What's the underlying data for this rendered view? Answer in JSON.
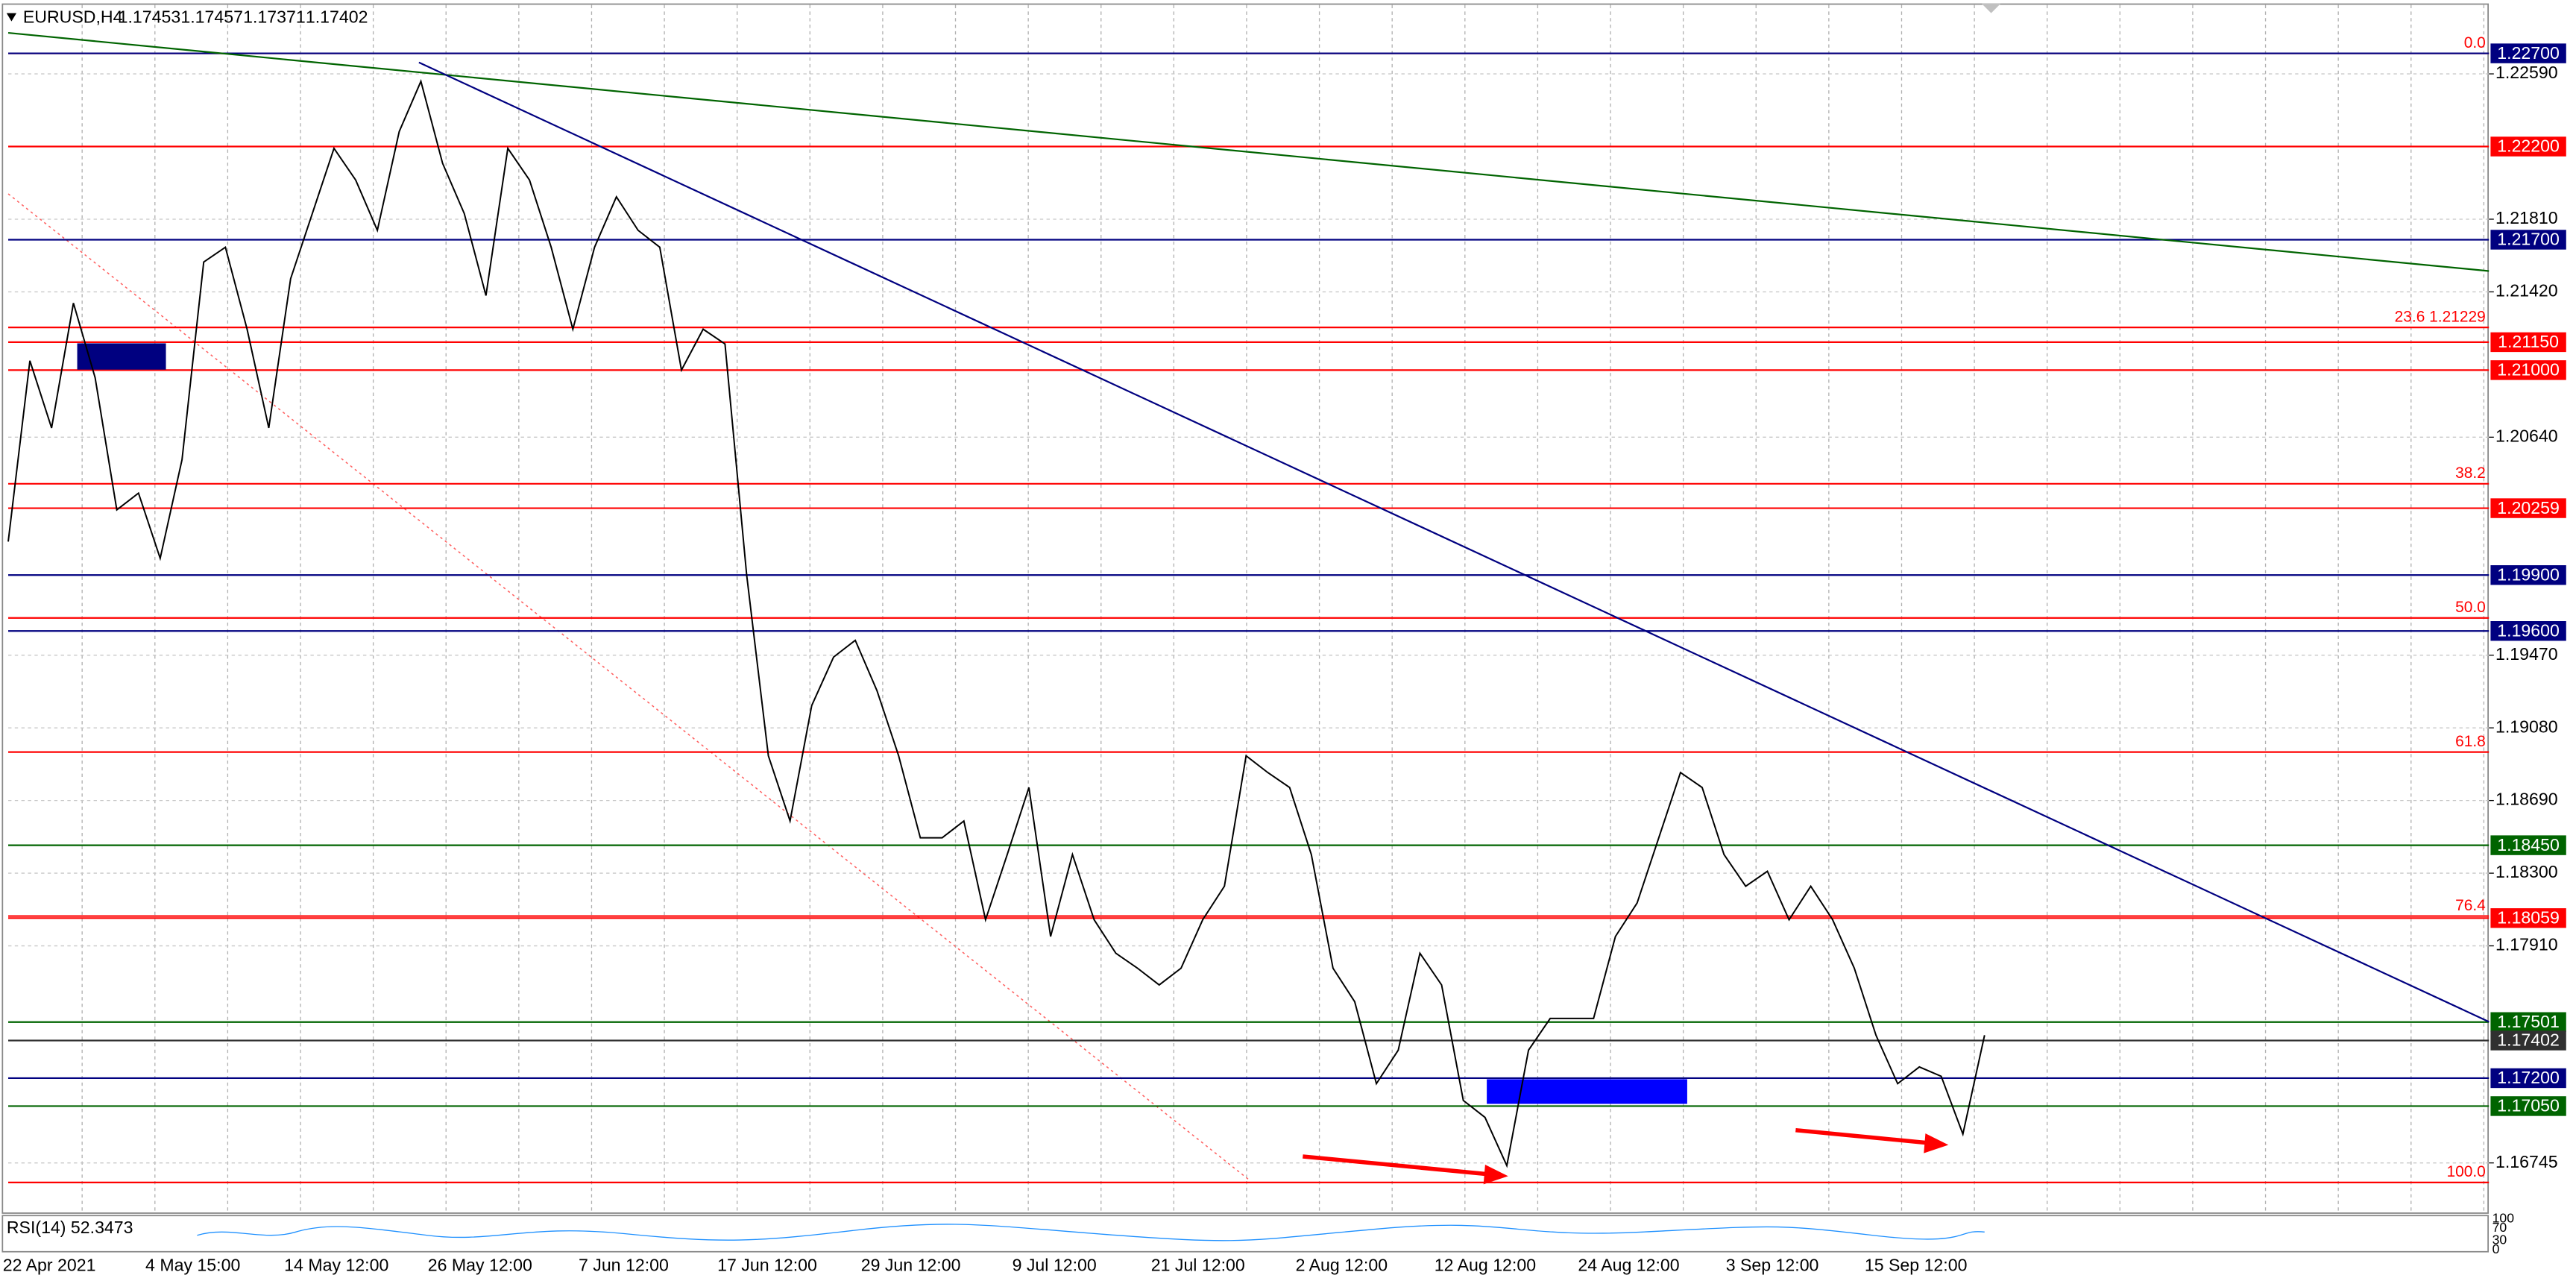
{
  "header": {
    "symbol": "EURUSD,H4",
    "ohlc": [
      "1.17453",
      "1.17457",
      "1.17371",
      "1.17402"
    ]
  },
  "chart_data": {
    "type": "line",
    "series": [
      {
        "name": "EURUSD",
        "color": "#000000",
        "values": [
          1.2008,
          1.2105,
          1.2069,
          1.2136,
          1.2096,
          1.2025,
          1.2034,
          1.1999,
          1.2052,
          1.2158,
          1.2166,
          1.2122,
          1.2069,
          1.2149,
          1.2184,
          1.2219,
          1.2202,
          1.2175,
          1.2228,
          1.2255,
          1.2211,
          1.2184,
          1.214,
          1.2219,
          1.2202,
          1.2166,
          1.2122,
          1.2166,
          1.2193,
          1.2175,
          1.2166,
          1.21,
          1.2122,
          1.2114,
          1.199,
          1.1893,
          1.1858,
          1.192,
          1.1946,
          1.1955,
          1.1928,
          1.1893,
          1.1849,
          1.1849,
          1.1858,
          1.1805,
          1.184,
          1.1876,
          1.1796,
          1.184,
          1.1805,
          1.1787,
          1.1779,
          1.177,
          1.1779,
          1.1805,
          1.1823,
          1.1893,
          1.1884,
          1.1876,
          1.184,
          1.1779,
          1.1761,
          1.1717,
          1.1735,
          1.1787,
          1.177,
          1.1708,
          1.1699,
          1.1673,
          1.1735,
          1.1752,
          1.1752,
          1.1752,
          1.1796,
          1.1814,
          1.1849,
          1.1884,
          1.1876,
          1.184,
          1.1823,
          1.1831,
          1.1805,
          1.1823,
          1.1805,
          1.1779,
          1.1743,
          1.1717,
          1.1726,
          1.1721,
          1.169,
          1.1743
        ]
      }
    ],
    "x_labels": [
      "22 Apr 2021",
      "4 May 15:00",
      "14 May 12:00",
      "26 May 12:00",
      "7 Jun 12:00",
      "17 Jun 12:00",
      "29 Jun 12:00",
      "9 Jul 12:00",
      "21 Jul 12:00",
      "2 Aug 12:00",
      "12 Aug 12:00",
      "24 Aug 12:00",
      "3 Sep 12:00",
      "15 Sep 12:00"
    ],
    "ylim": [
      1.1648,
      1.2296
    ],
    "yticks": [
      {
        "value": 1.2259,
        "label": "1.22590"
      },
      {
        "value": 1.2181,
        "label": "1.21810"
      },
      {
        "value": 1.2142,
        "label": "1.21420"
      },
      {
        "value": 1.2064,
        "label": "1.20640"
      },
      {
        "value": 1.1947,
        "label": "1.19470"
      },
      {
        "value": 1.1908,
        "label": "1.19080"
      },
      {
        "value": 1.1869,
        "label": "1.18690"
      },
      {
        "value": 1.183,
        "label": "1.18300"
      },
      {
        "value": 1.1791,
        "label": "1.17910"
      },
      {
        "value": 1.16745,
        "label": "1.16745"
      }
    ],
    "levels": [
      {
        "value": 1.227,
        "label": "1.22700",
        "color": "#000080"
      },
      {
        "value": 1.222,
        "label": "1.22200",
        "color": "#ff0000"
      },
      {
        "value": 1.217,
        "label": "1.21700",
        "color": "#000080"
      },
      {
        "value": 1.2115,
        "label": "1.21150",
        "color": "#ff0000"
      },
      {
        "value": 1.21,
        "label": "1.21000",
        "color": "#ff0000"
      },
      {
        "value": 1.20259,
        "label": "1.20259",
        "color": "#ff0000"
      },
      {
        "value": 1.199,
        "label": "1.19900",
        "color": "#000080"
      },
      {
        "value": 1.196,
        "label": "1.19600",
        "color": "#000080"
      },
      {
        "value": 1.1845,
        "label": "1.18450",
        "color": "#006400"
      },
      {
        "value": 1.18059,
        "label": "1.18059",
        "color": "#ff0000"
      },
      {
        "value": 1.17501,
        "label": "1.17501",
        "color": "#006400"
      },
      {
        "value": 1.17402,
        "label": "1.17402",
        "color": "#303030"
      },
      {
        "value": 1.172,
        "label": "1.17200",
        "color": "#000080"
      },
      {
        "value": 1.1705,
        "label": "1.17050",
        "color": "#006400"
      }
    ],
    "fib_levels": [
      {
        "value": 1.227,
        "label": "0.0"
      },
      {
        "value": 1.21229,
        "label": "23.6 1.21229"
      },
      {
        "value": 1.2039,
        "label": "38.2"
      },
      {
        "value": 1.1967,
        "label": "50.0"
      },
      {
        "value": 1.1895,
        "label": "61.8"
      },
      {
        "value": 1.1807,
        "label": "76.4"
      },
      {
        "value": 1.1664,
        "label": "100.0"
      }
    ],
    "rsi": {
      "label": "RSI(14) 52.3473",
      "yticks": [
        100,
        70,
        30,
        0
      ]
    }
  }
}
